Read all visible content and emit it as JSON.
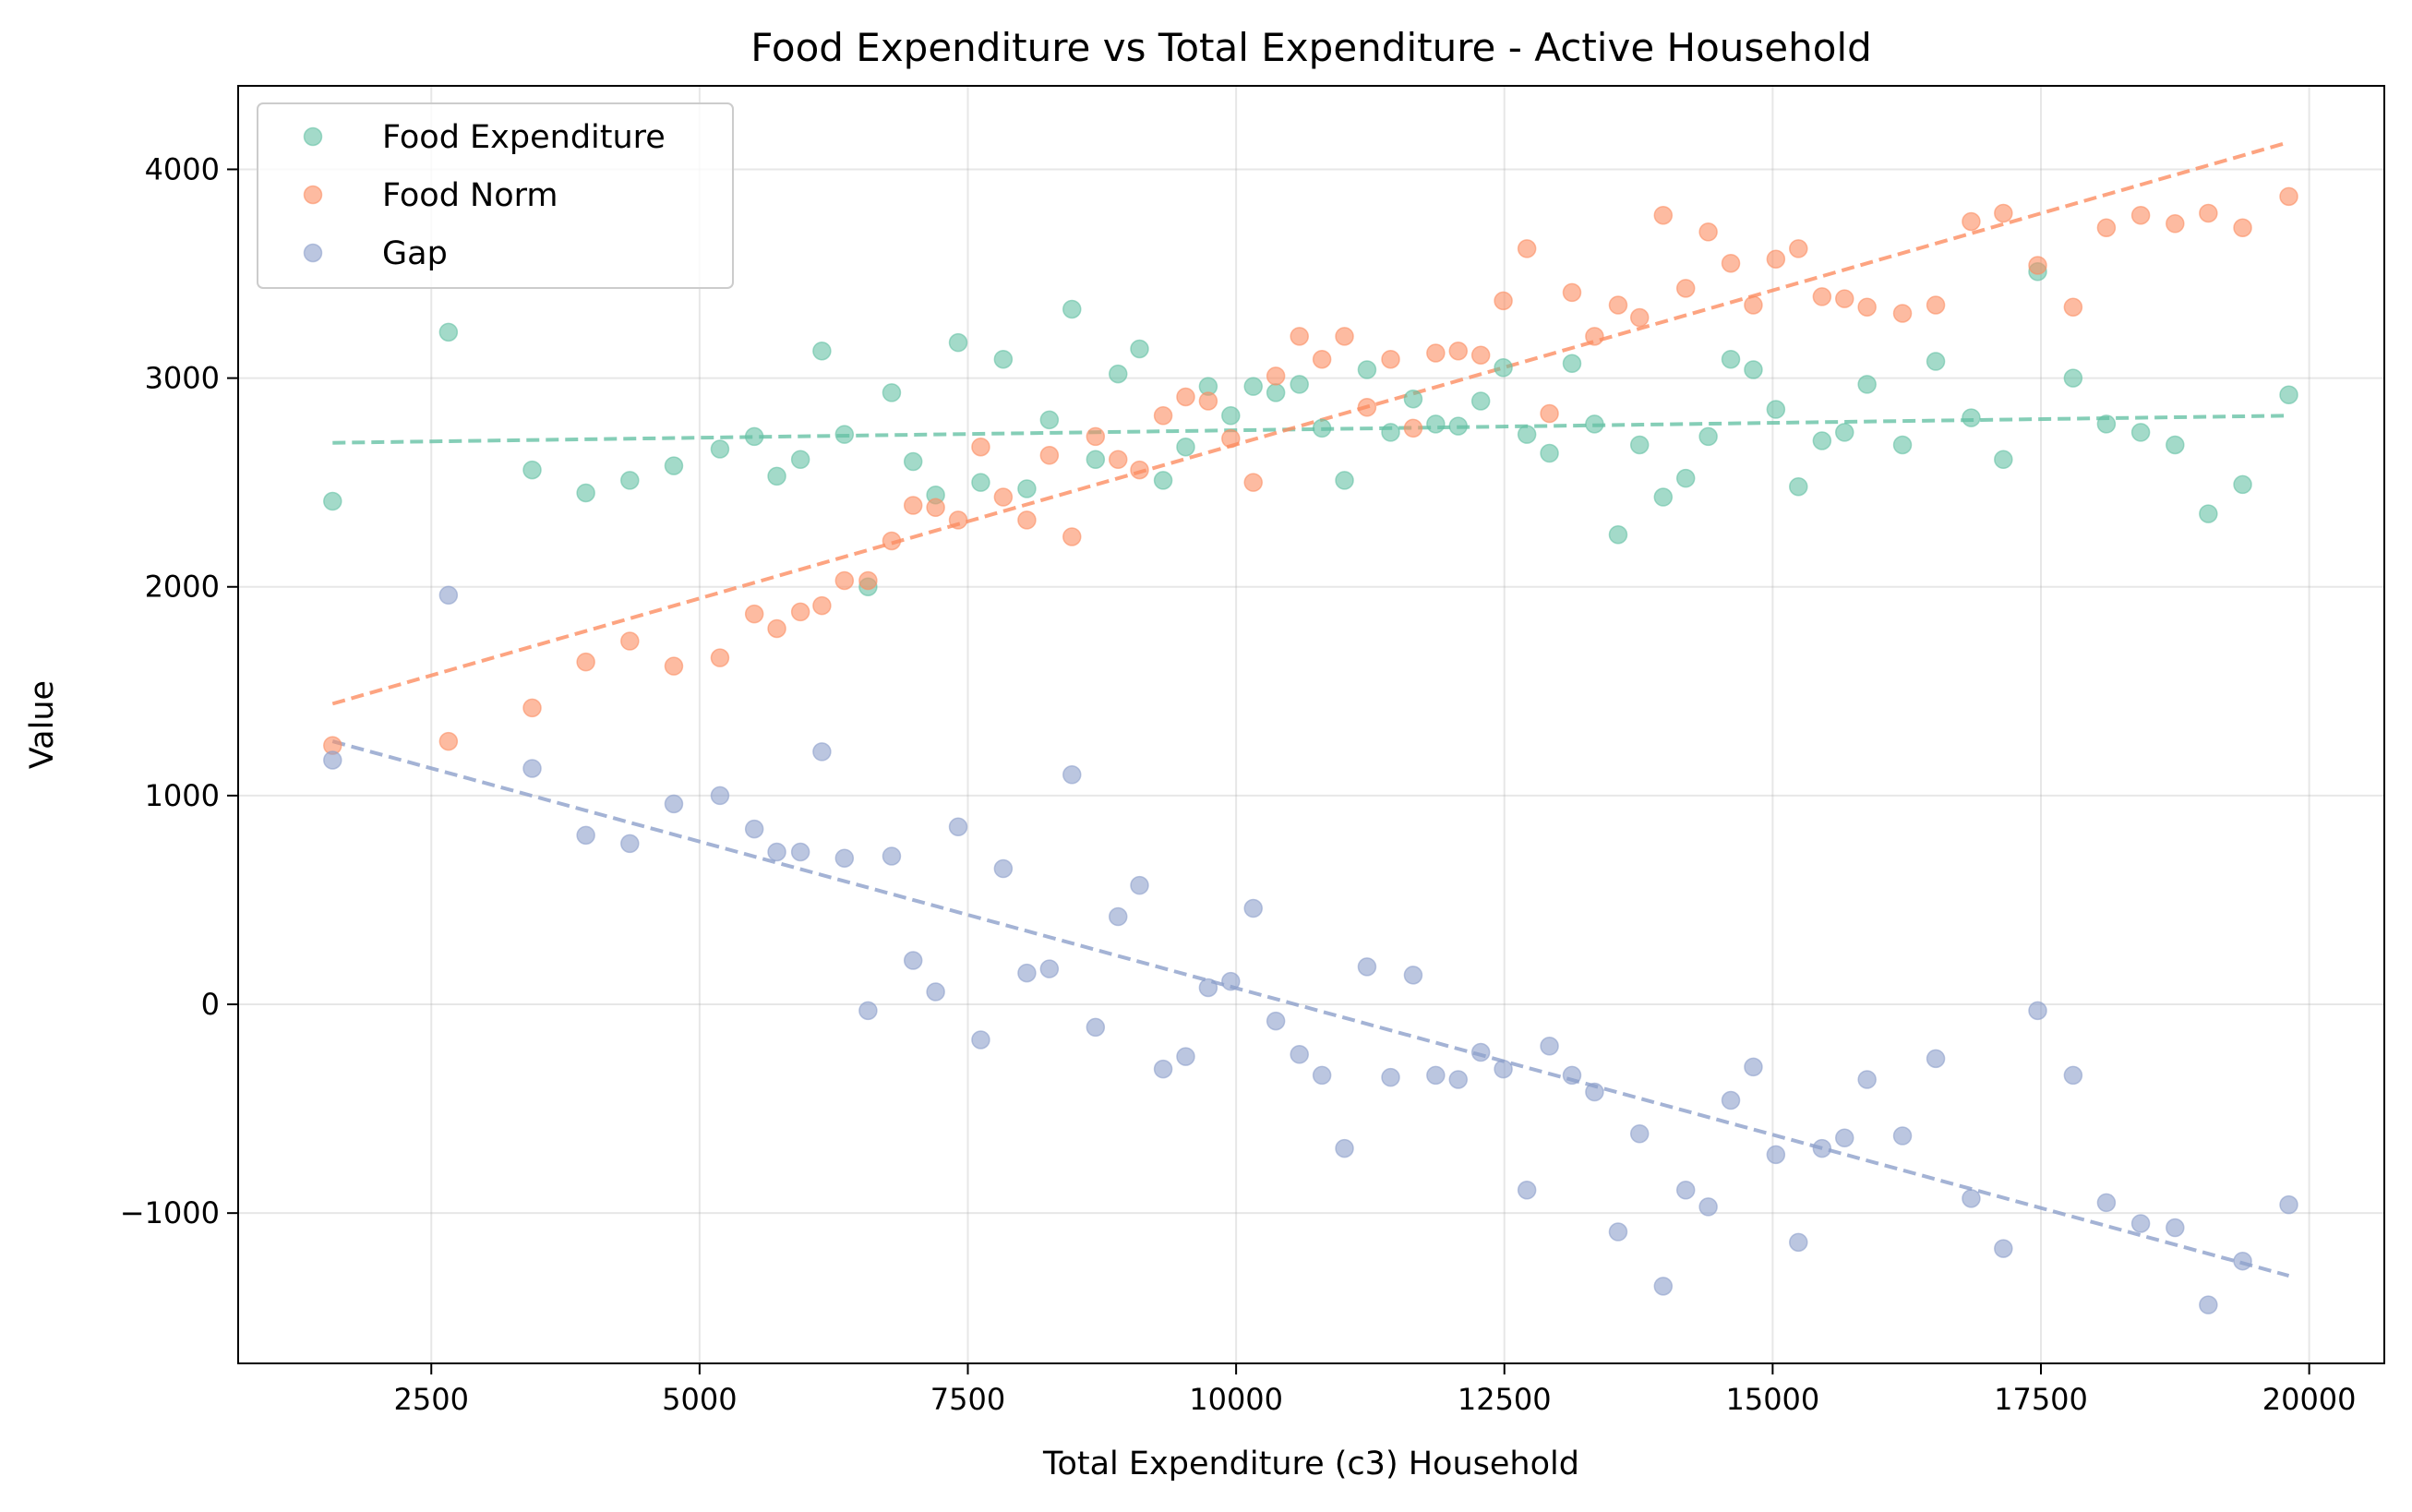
{
  "chart_data": {
    "type": "scatter",
    "title": "Food Expenditure vs Total Expenditure - Active Household",
    "xlabel": "Total Expenditure (c3) Household",
    "ylabel": "Value",
    "xlim": [
      700,
      20700
    ],
    "ylim": [
      -1720,
      4400
    ],
    "xticks": [
      2500,
      5000,
      7500,
      10000,
      12500,
      15000,
      17500,
      20000
    ],
    "yticks": [
      -1000,
      0,
      1000,
      2000,
      3000,
      4000
    ],
    "ytick_labels": [
      "−1000",
      "0",
      "1000",
      "2000",
      "3000",
      "4000"
    ],
    "grid": true,
    "legend_position": "upper-left",
    "x": [
      1580,
      2660,
      3440,
      3940,
      4350,
      4760,
      5190,
      5510,
      5720,
      5940,
      6140,
      6350,
      6570,
      6790,
      6990,
      7200,
      7410,
      7620,
      7830,
      8050,
      8260,
      8470,
      8690,
      8900,
      9100,
      9320,
      9530,
      9740,
      9950,
      10160,
      10370,
      10590,
      10800,
      11010,
      11220,
      11440,
      11650,
      11860,
      12070,
      12280,
      12490,
      12710,
      12920,
      13130,
      13340,
      13560,
      13760,
      13980,
      14190,
      14400,
      14610,
      14820,
      15030,
      15240,
      15460,
      15670,
      15880,
      16210,
      16520,
      16850,
      17150,
      17470,
      17800,
      18110,
      18430,
      18750,
      19060,
      19380,
      19810
    ],
    "series": [
      {
        "name": "Food Expenditure",
        "color": "#66c2a5",
        "values": [
          2410,
          3220,
          2560,
          2450,
          2510,
          2580,
          2660,
          2720,
          2530,
          2610,
          3130,
          2730,
          2000,
          2930,
          2600,
          2440,
          3170,
          2500,
          3090,
          2470,
          2800,
          3330,
          2610,
          3020,
          3140,
          2510,
          2670,
          2960,
          2820,
          2960,
          2930,
          2970,
          2760,
          2510,
          3040,
          2740,
          2900,
          2780,
          2770,
          2890,
          3050,
          2730,
          2640,
          3070,
          2780,
          2250,
          2680,
          2430,
          2520,
          2720,
          3090,
          3040,
          2850,
          2480,
          2700,
          2740,
          2970,
          2680,
          3080,
          2810,
          2610,
          3510,
          3000,
          2780,
          2740,
          2680,
          2350,
          2490,
          2920
        ],
        "trend": [
          2690,
          2820
        ]
      },
      {
        "name": "Food Norm",
        "color": "#fc8d62",
        "values": [
          1240,
          1260,
          1420,
          1640,
          1740,
          1620,
          1660,
          1870,
          1800,
          1880,
          1910,
          2030,
          2030,
          2220,
          2390,
          2380,
          2320,
          2670,
          2430,
          2320,
          2630,
          2240,
          2720,
          2610,
          2560,
          2820,
          2910,
          2890,
          2710,
          2500,
          3010,
          3200,
          3090,
          3200,
          2860,
          3090,
          2760,
          3120,
          3130,
          3110,
          3370,
          3620,
          2830,
          3410,
          3200,
          3350,
          3290,
          3780,
          3430,
          3700,
          3550,
          3350,
          3570,
          3620,
          3390,
          3380,
          3340,
          3310,
          3350,
          3750,
          3790,
          3540,
          3340,
          3720,
          3780,
          3740,
          3790,
          3720,
          3870
        ],
        "trend": [
          1440,
          4130
        ]
      },
      {
        "name": "Gap",
        "color": "#8da0cb",
        "values": [
          1170,
          1960,
          1130,
          810,
          770,
          960,
          1000,
          840,
          730,
          730,
          1210,
          700,
          -30,
          710,
          210,
          60,
          850,
          -170,
          650,
          150,
          170,
          1100,
          -110,
          420,
          570,
          -310,
          -250,
          80,
          110,
          460,
          -80,
          -240,
          -340,
          -690,
          180,
          -350,
          140,
          -340,
          -360,
          -230,
          -310,
          -890,
          -200,
          -340,
          -420,
          -1090,
          -620,
          -1350,
          -890,
          -970,
          -460,
          -300,
          -720,
          -1140,
          -690,
          -640,
          -360,
          -630,
          -260,
          -930,
          -1170,
          -30,
          -340,
          -950,
          -1050,
          -1070,
          -1440,
          -1230,
          -960
        ],
        "trend": [
          1260,
          -1300
        ]
      }
    ],
    "trend_x": [
      1580,
      19810
    ]
  }
}
